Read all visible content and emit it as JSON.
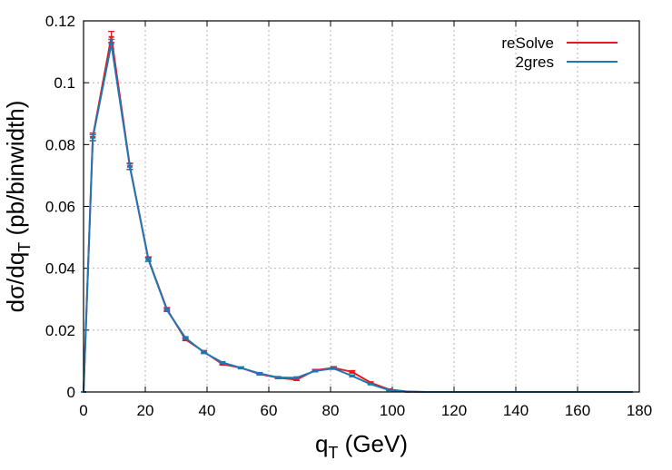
{
  "chart_data": {
    "type": "line",
    "title": "",
    "xlabel": "q",
    "xlabel_sub": "T",
    "xlabel_tail": " (GeV)",
    "ylabel": "dσ/dq",
    "ylabel_sub": "T",
    "ylabel_tail": " (pb/binwidth)",
    "xlim": [
      0,
      180
    ],
    "ylim": [
      0,
      0.12
    ],
    "grid": true,
    "legend_position": "top-right",
    "x_ticks": [
      "0",
      "20",
      "40",
      "60",
      "80",
      "100",
      "120",
      "140",
      "160",
      "180"
    ],
    "y_ticks": [
      "0",
      "0.02",
      "0.04",
      "0.06",
      "0.08",
      "0.1",
      "0.12"
    ],
    "x": [
      0,
      3,
      9,
      15,
      21,
      27,
      33,
      39,
      45,
      51,
      57,
      63,
      69,
      75,
      81,
      87,
      93,
      99,
      105,
      111,
      117,
      123,
      129,
      135,
      141,
      147,
      153,
      159,
      165,
      171,
      177
    ],
    "series": [
      {
        "name": "reSolve",
        "color": "#e41a1c",
        "values": [
          0,
          0.0825,
          0.1148,
          0.073,
          0.043,
          0.0268,
          0.017,
          0.013,
          0.009,
          0.0078,
          0.0058,
          0.0046,
          0.004,
          0.007,
          0.0078,
          0.0065,
          0.003,
          0.0008,
          0.0001,
          0,
          0,
          0,
          0,
          0,
          0,
          0,
          0,
          0,
          0,
          0,
          0
        ],
        "errors": [
          0,
          0.0012,
          0.0018,
          0.001,
          0.0007,
          0.0005,
          0.0004,
          0.0004,
          0.0003,
          0.0003,
          0.0003,
          0.0003,
          0.0003,
          0.0003,
          0.0004,
          0.0004,
          0.0003,
          0.0002,
          0.0001,
          0,
          0,
          0,
          0,
          0,
          0,
          0,
          0,
          0,
          0,
          0,
          0
        ]
      },
      {
        "name": "2gres",
        "color": "#1f77b4",
        "values": [
          0,
          0.0822,
          0.1125,
          0.0728,
          0.0428,
          0.0265,
          0.0175,
          0.0128,
          0.0095,
          0.0078,
          0.006,
          0.0047,
          0.0046,
          0.0068,
          0.0076,
          0.0052,
          0.0025,
          0.0006,
          0.0001,
          0,
          0,
          0,
          0,
          0,
          0,
          0,
          0,
          0,
          0,
          0,
          0
        ],
        "errors": [
          0,
          0.001,
          0.0015,
          0.0009,
          0.0006,
          0.0005,
          0.0004,
          0.0004,
          0.0003,
          0.0003,
          0.0003,
          0.0003,
          0.0003,
          0.0003,
          0.0003,
          0.0003,
          0.0002,
          0.0002,
          0.0001,
          0,
          0,
          0,
          0,
          0,
          0,
          0,
          0,
          0,
          0,
          0,
          0
        ]
      }
    ]
  }
}
